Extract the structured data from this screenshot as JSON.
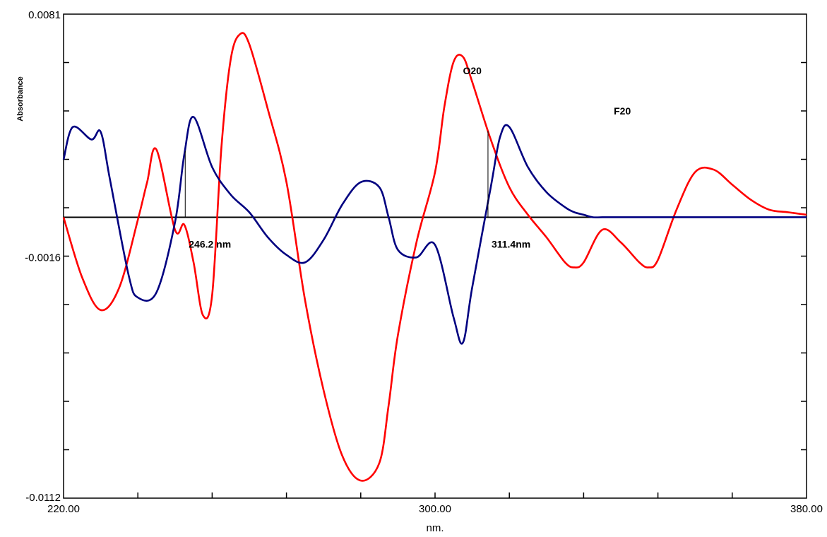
{
  "chart_data": {
    "type": "line",
    "title": "",
    "xlabel": "nm.",
    "ylabel": "Absorbance",
    "xlim": [
      220,
      380
    ],
    "ylim": [
      -0.0112,
      0.0081
    ],
    "x_tick_labels": [
      "220.00",
      "300.00",
      "380.00"
    ],
    "x_tick_values": [
      220,
      300,
      380
    ],
    "y_tick_labels": [
      "0.0081",
      "-0.0016",
      "-0.0112"
    ],
    "y_tick_values": [
      0.0081,
      -0.0016,
      -0.0112
    ],
    "grid": false,
    "series": [
      {
        "name": "O20",
        "color": "#ff0000",
        "x": [
          220,
          224,
          228,
          232,
          236,
          238,
          240,
          244,
          246,
          248,
          250,
          252,
          254,
          256,
          258,
          260,
          264,
          268,
          272,
          276,
          280,
          284,
          288,
          290,
          292,
          296,
          300,
          302,
          304,
          306,
          308,
          312,
          316,
          320,
          324,
          328,
          330,
          332,
          336,
          340,
          344,
          346,
          348,
          352,
          356,
          360,
          364,
          368,
          372,
          376,
          380
        ],
        "y": [
          0,
          -0.0024,
          -0.0037,
          -0.0028,
          -0.0001,
          0.0014,
          0.0027,
          -0.0005,
          -0.0003,
          -0.0018,
          -0.0039,
          -0.0031,
          0.0028,
          0.0063,
          0.0073,
          0.0069,
          0.0043,
          0.0014,
          -0.0033,
          -0.0069,
          -0.0095,
          -0.0105,
          -0.0098,
          -0.0075,
          -0.0047,
          -0.001,
          0.0018,
          0.0044,
          0.0062,
          0.0064,
          0.0054,
          0.0031,
          0.0012,
          0.0001,
          -0.0008,
          -0.0018,
          -0.002,
          -0.0018,
          -0.0005,
          -0.001,
          -0.0018,
          -0.002,
          -0.0017,
          0.0003,
          0.0018,
          0.0019,
          0.0013,
          0.0007,
          0.0003,
          0.0002,
          0.0001
        ]
      },
      {
        "name": "F20",
        "color": "#000080",
        "x": [
          220,
          222,
          226,
          228,
          230,
          234,
          236,
          240,
          244,
          246,
          248,
          252,
          256,
          260,
          264,
          268,
          272,
          276,
          280,
          284,
          288,
          290,
          292,
          296,
          300,
          304,
          306,
          308,
          312,
          314,
          316,
          320,
          324,
          328,
          330,
          332,
          334,
          336,
          340,
          344,
          346,
          348,
          352,
          356,
          360,
          364,
          368,
          372,
          376,
          380
        ],
        "y": [
          0.0023,
          0.0036,
          0.0031,
          0.0034,
          0.0015,
          -0.0023,
          -0.0032,
          -0.003,
          -0.0002,
          0.0025,
          0.004,
          0.002,
          0.0009,
          0.0002,
          -0.0008,
          -0.0015,
          -0.0018,
          -0.0009,
          0.0005,
          0.0014,
          0.0012,
          0.0,
          -0.0013,
          -0.0016,
          -0.0011,
          -0.004,
          -0.005,
          -0.0028,
          0.0012,
          0.0032,
          0.0036,
          0.002,
          0.001,
          0.0004,
          0.0002,
          0.0001,
          0.0,
          0.0,
          0.0,
          0.0,
          0.0,
          0.0,
          0.0,
          0.0,
          0.0,
          0.0,
          0.0,
          0.0,
          0.0,
          0.0
        ]
      }
    ],
    "annotations": [
      {
        "text": "O20",
        "x": 306,
        "y": 0.0057
      },
      {
        "text": "F20",
        "x": 338.5,
        "y": 0.0041
      },
      {
        "text": "246.2 nm",
        "x": 246.2,
        "y": -0.0007,
        "type": "vline"
      },
      {
        "text": "311.4nm",
        "x": 311.4,
        "y": -0.0007,
        "type": "vline"
      }
    ]
  }
}
